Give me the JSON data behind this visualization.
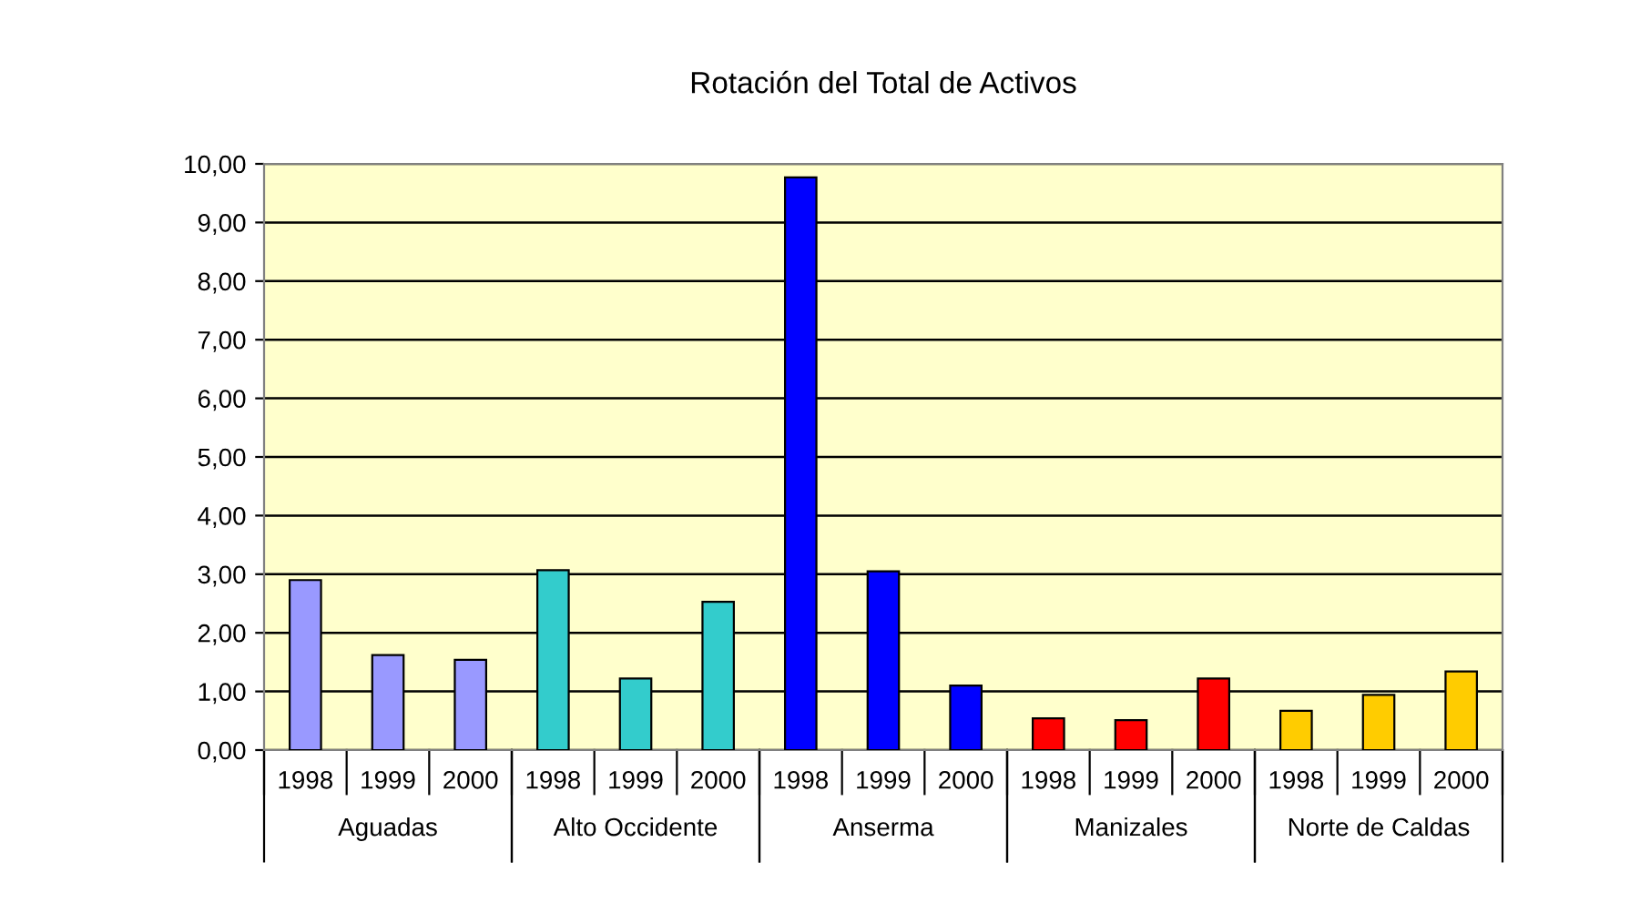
{
  "chart_data": {
    "type": "bar",
    "title": "Rotación del Total de Activos",
    "categories": [
      "1998",
      "1999",
      "2000",
      "1998",
      "1999",
      "2000",
      "1998",
      "1999",
      "2000",
      "1998",
      "1999",
      "2000",
      "1998",
      "1999",
      "2000"
    ],
    "values": [
      2.9,
      1.62,
      1.54,
      3.07,
      1.22,
      2.53,
      9.77,
      3.05,
      1.1,
      0.54,
      0.51,
      1.22,
      0.67,
      0.94,
      1.34
    ],
    "colors": [
      "#9999ff",
      "#9999ff",
      "#9999ff",
      "#33cccc",
      "#33cccc",
      "#33cccc",
      "#0000ff",
      "#0000ff",
      "#0000ff",
      "#ff0000",
      "#ff0000",
      "#ff0000",
      "#ffcc00",
      "#ffcc00",
      "#ffcc00"
    ],
    "annotations": [
      "Aguadas",
      "Alto Occidente",
      "Anserma",
      "Manizales",
      "Norte de Caldas"
    ],
    "ylim": [
      0,
      10
    ],
    "yticks": [
      {
        "value": 0,
        "label": "0,00"
      },
      {
        "value": 1,
        "label": "1,00"
      },
      {
        "value": 2,
        "label": "2,00"
      },
      {
        "value": 3,
        "label": "3,00"
      },
      {
        "value": 4,
        "label": "4,00"
      },
      {
        "value": 5,
        "label": "5,00"
      },
      {
        "value": 6,
        "label": "6,00"
      },
      {
        "value": 7,
        "label": "7,00"
      },
      {
        "value": 8,
        "label": "8,00"
      },
      {
        "value": 9,
        "label": "9,00"
      },
      {
        "value": 10,
        "label": "10,00"
      }
    ],
    "grid": "y",
    "legend": false
  }
}
